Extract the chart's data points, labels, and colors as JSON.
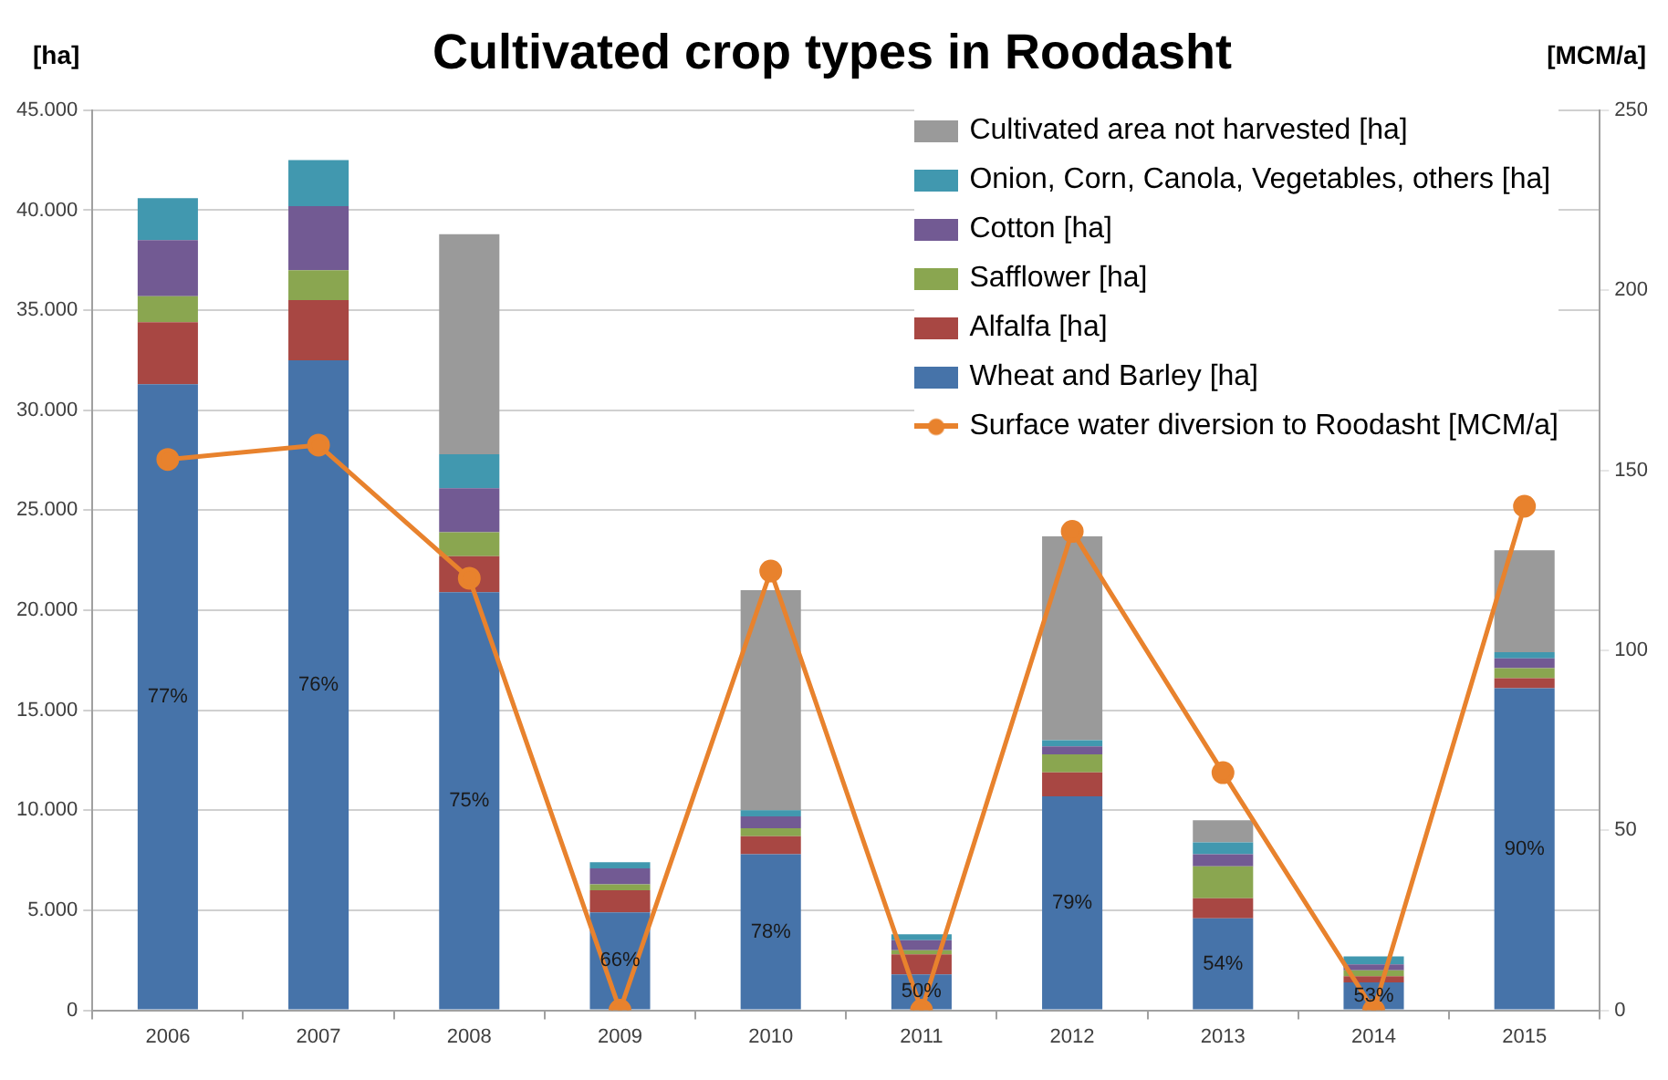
{
  "chart_data": {
    "type": "bar",
    "title": "Cultivated crop types in Roodasht",
    "ylabel": "[ha]",
    "y2label": "[MCM/a]",
    "categories": [
      "2006",
      "2007",
      "2008",
      "2009",
      "2010",
      "2011",
      "2012",
      "2013",
      "2014",
      "2015"
    ],
    "stacked": true,
    "series": [
      {
        "name": "Wheat and Barley [ha]",
        "color": "#4673a9",
        "values": [
          31300,
          32500,
          20900,
          4900,
          7800,
          1800,
          10700,
          4600,
          1400,
          16100
        ]
      },
      {
        "name": "Alfalfa [ha]",
        "color": "#a84743",
        "values": [
          3100,
          3000,
          1800,
          1100,
          900,
          1000,
          1200,
          1000,
          300,
          500
        ]
      },
      {
        "name": "Safflower [ha]",
        "color": "#8aa650",
        "values": [
          1300,
          1500,
          1200,
          300,
          400,
          200,
          900,
          1600,
          300,
          500
        ]
      },
      {
        "name": "Cotton [ha]",
        "color": "#725a93",
        "values": [
          2800,
          3200,
          2200,
          800,
          600,
          500,
          400,
          600,
          300,
          500
        ]
      },
      {
        "name": "Onion, Corn, Canola, Vegetables, others [ha]",
        "color": "#4198af",
        "values": [
          2100,
          2300,
          1700,
          300,
          300,
          300,
          300,
          600,
          400,
          300
        ]
      },
      {
        "name": "Cultivated area not harvested [ha]",
        "color": "#9a9a9a",
        "values": [
          0,
          0,
          11000,
          0,
          11000,
          0,
          10200,
          1100,
          0,
          5100
        ]
      },
      {
        "name": "Surface water diversion to Roodasht [MCM/a]",
        "type": "line",
        "axis": "y2",
        "color": "#e8822d",
        "values": [
          153,
          157,
          120,
          0,
          122,
          0,
          133,
          66,
          0,
          140
        ]
      }
    ],
    "ylim": [
      0,
      45000
    ],
    "yticks": [
      {
        "value": 0,
        "label": "0"
      },
      {
        "value": 5000,
        "label": "5.000"
      },
      {
        "value": 10000,
        "label": "10.000"
      },
      {
        "value": 15000,
        "label": "15.000"
      },
      {
        "value": 20000,
        "label": "20.000"
      },
      {
        "value": 25000,
        "label": "25.000"
      },
      {
        "value": 30000,
        "label": "30.000"
      },
      {
        "value": 35000,
        "label": "35.000"
      },
      {
        "value": 40000,
        "label": "40.000"
      },
      {
        "value": 45000,
        "label": "45.000"
      }
    ],
    "y2lim": [
      0,
      250
    ],
    "y2ticks": [
      0,
      50,
      100,
      150,
      200,
      250
    ],
    "annotations": [
      "77%",
      "76%",
      "75%",
      "66%",
      "78%",
      "50%",
      "79%",
      "54%",
      "53%",
      "90%"
    ],
    "grid": "y",
    "legend": "top right",
    "marker": "circle"
  }
}
